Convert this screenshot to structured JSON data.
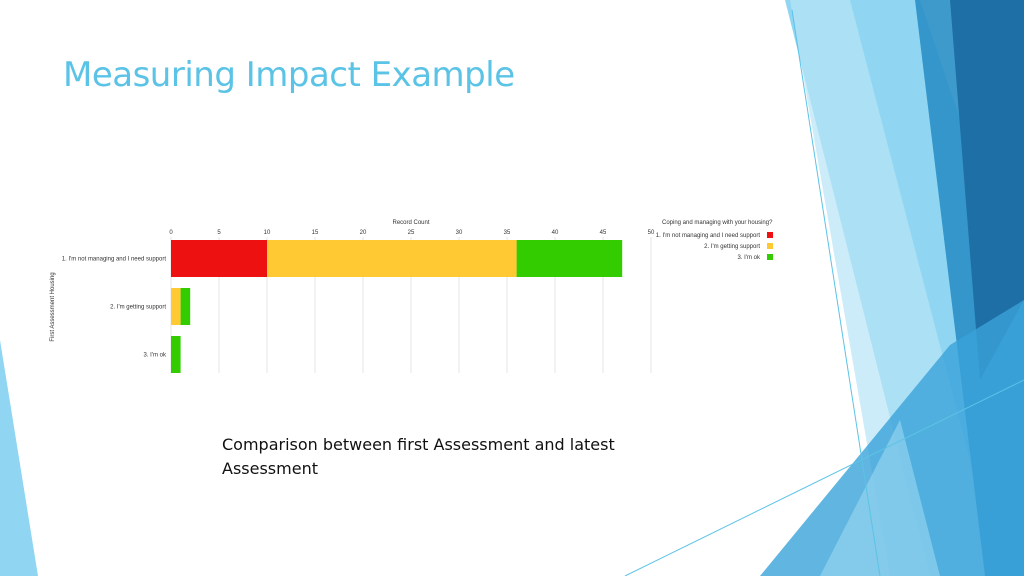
{
  "slide": {
    "title": "Measuring Impact Example",
    "caption": "Comparison between first Assessment and latest Assessment"
  },
  "theme": {
    "title_color": "#5bc3e6",
    "decor_colors": [
      "#7dcff0",
      "#b8e4f7",
      "#2a8fc7",
      "#1e6fa6",
      "#3aa3da"
    ]
  },
  "chart_data": {
    "type": "bar",
    "orientation": "horizontal",
    "stacked": true,
    "xlabel": "Record Count",
    "ylabel": "First Assessment Housing",
    "xlim": [
      0,
      50
    ],
    "xticks": [
      0,
      5,
      10,
      15,
      20,
      25,
      30,
      35,
      40,
      45,
      50
    ],
    "categories": [
      "1. I'm not managing and I need support",
      "2. I'm getting support",
      "3. I'm ok"
    ],
    "series": [
      {
        "name": "1. I'm not managing and I need support",
        "color": "#ee1111",
        "values": [
          10,
          0,
          0
        ]
      },
      {
        "name": "2. I'm getting support",
        "color": "#ffc933",
        "values": [
          26,
          1,
          0
        ]
      },
      {
        "name": "3. I'm ok",
        "color": "#33cc00",
        "values": [
          11,
          1,
          1
        ]
      }
    ],
    "legend": {
      "title": "Coping and managing with your housing?",
      "position": "top-right"
    },
    "grid": true
  }
}
